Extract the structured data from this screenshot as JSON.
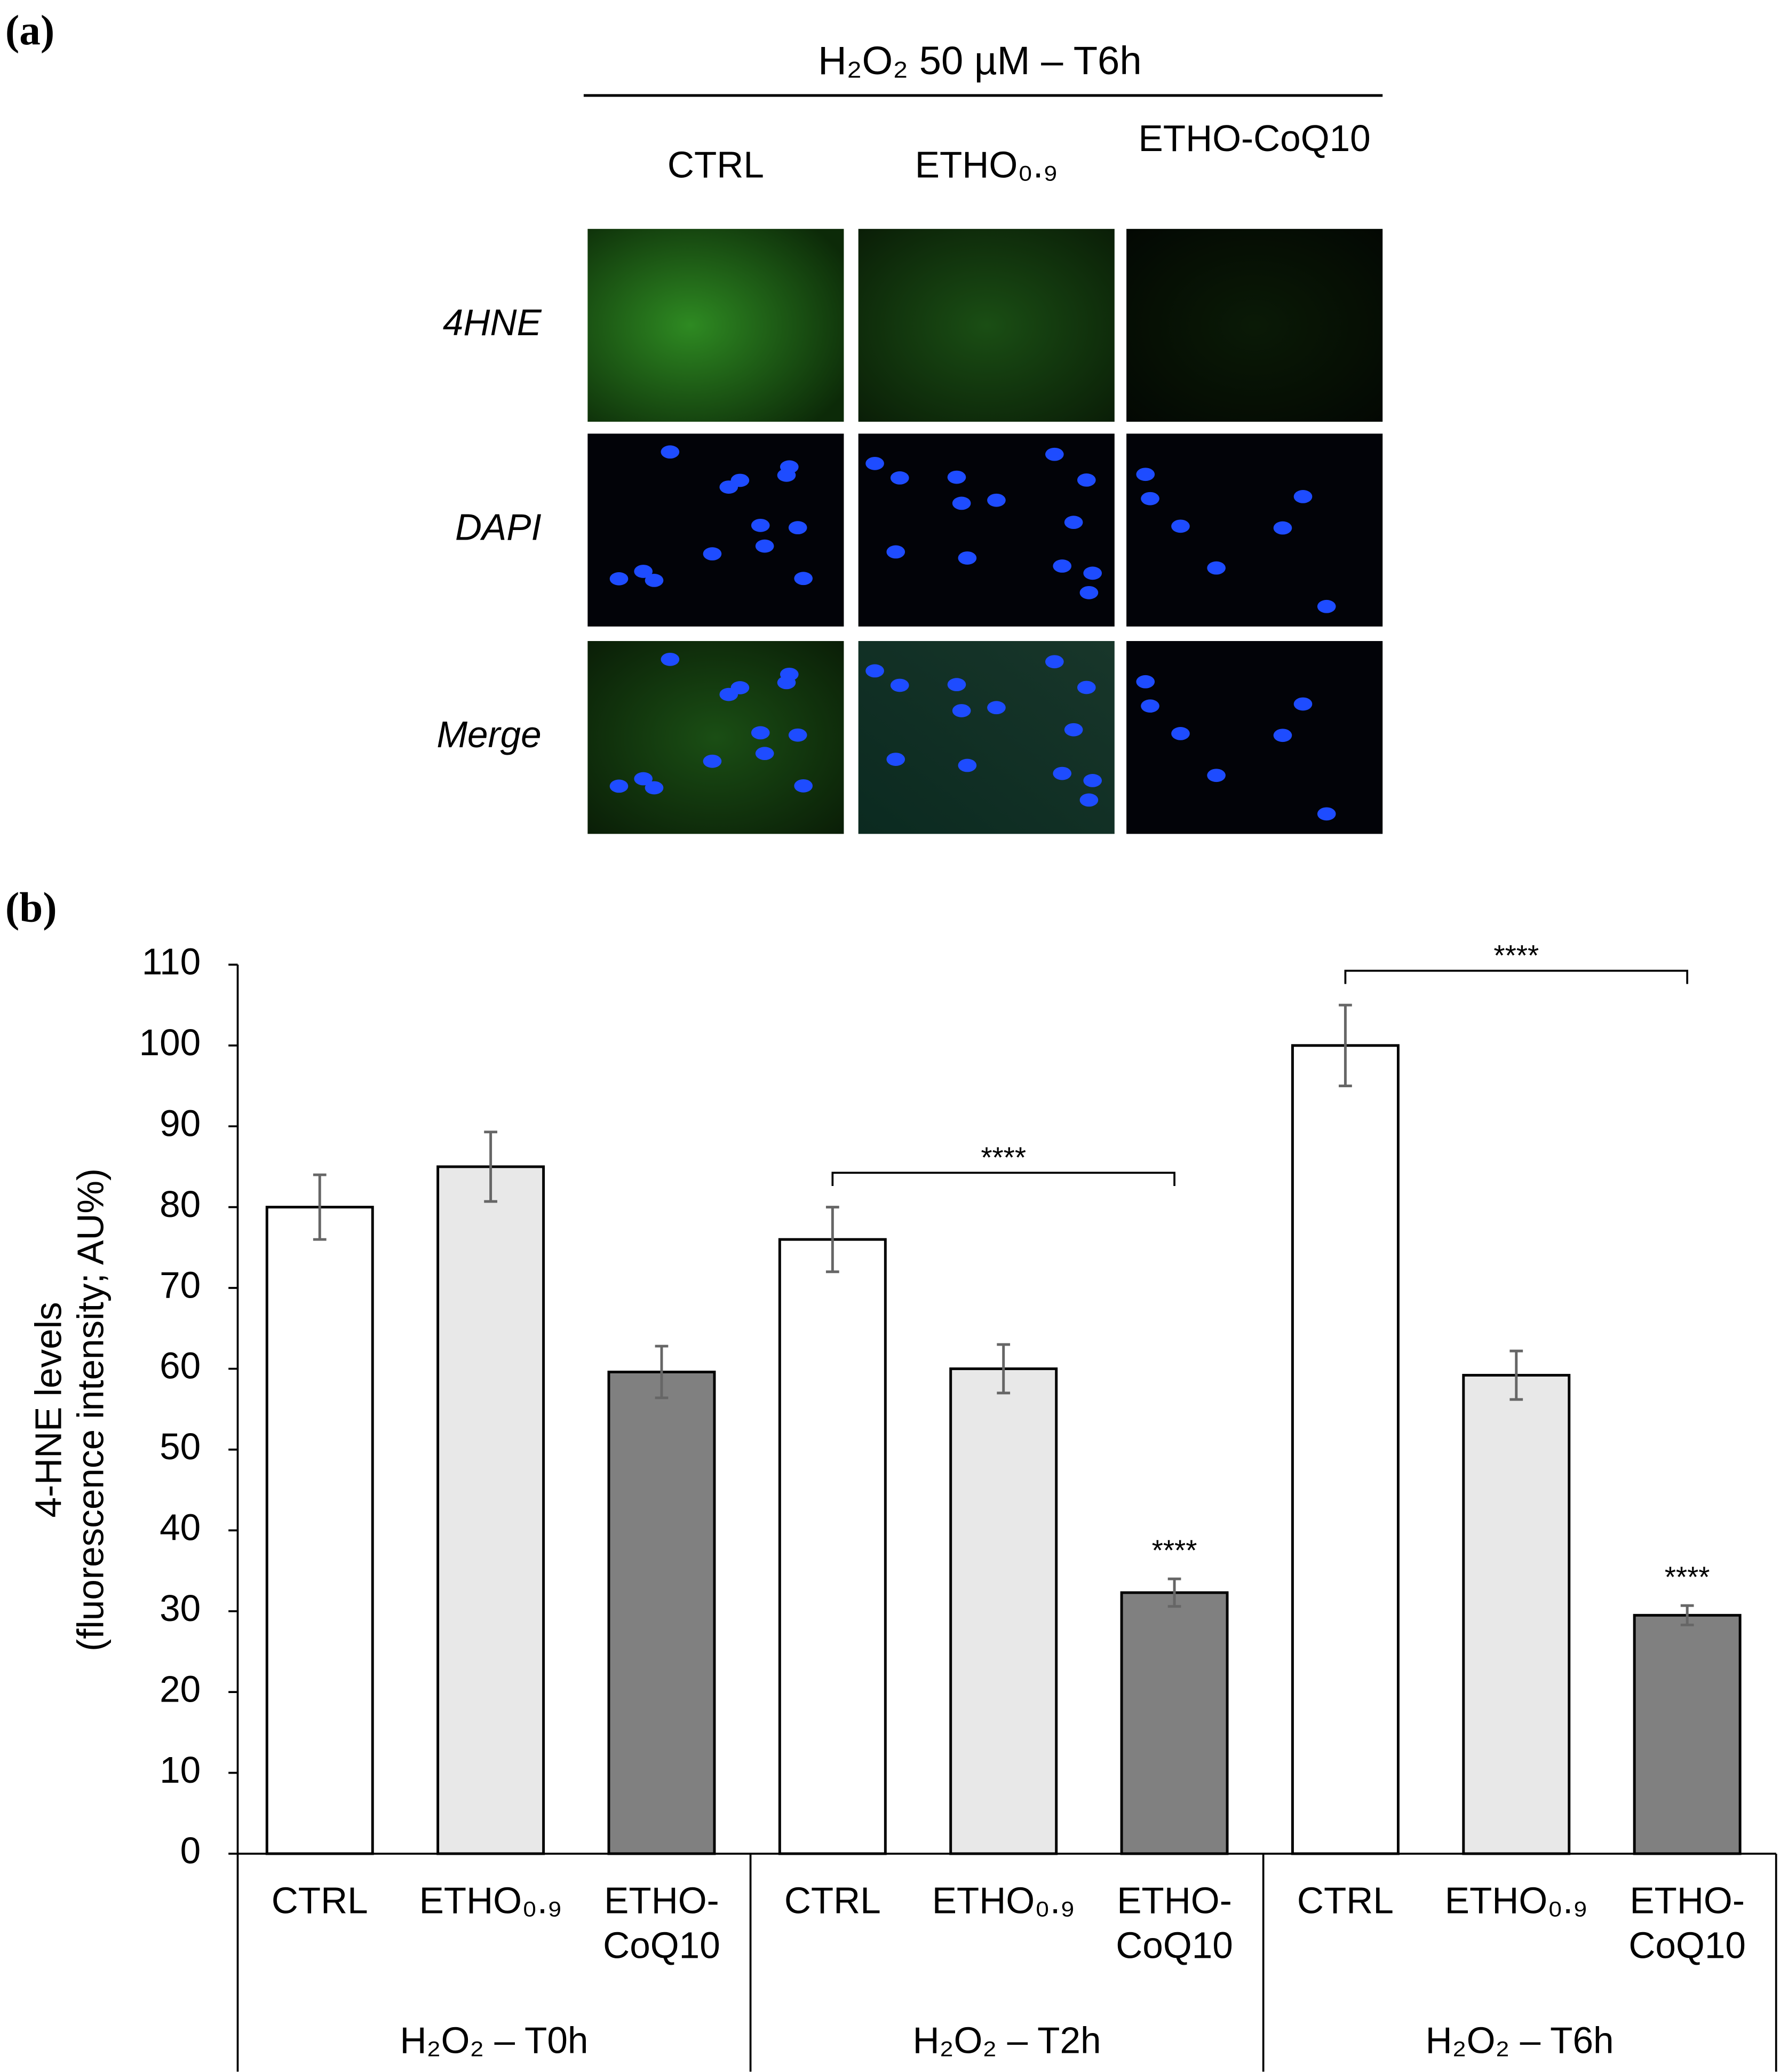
{
  "panel_a": {
    "label": "(a)",
    "treatment": "H₂O₂ 50 µM – T6h",
    "columns": [
      "CTRL",
      "ETHO₀.₉",
      "ETHO-CoQ10"
    ],
    "rows": [
      "4HNE",
      "DAPI",
      "Merge"
    ]
  },
  "chart_data": {
    "type": "bar",
    "panel_label": "(b)",
    "ylabel": [
      "4-HNE levels",
      "(fluorescence intensity; AU%)"
    ],
    "groups": [
      "H₂O₂ – T0h",
      "H₂O₂ – T2h",
      "H₂O₂ – T6h"
    ],
    "series": [
      {
        "name": "CTRL",
        "color": "#ffffff",
        "values": [
          80,
          76,
          100
        ],
        "errors": [
          4,
          4,
          5
        ]
      },
      {
        "name": "ETHO₀.₉",
        "color": "#e8e8e8",
        "values": [
          85,
          60,
          59.2
        ],
        "errors": [
          4.3,
          3,
          3
        ]
      },
      {
        "name": "ETHO-CoQ10",
        "color": "#808080",
        "values": [
          59.6,
          32.3,
          29.5
        ],
        "errors": [
          3.2,
          1.7,
          1.2
        ]
      }
    ],
    "ylim": [
      0,
      110
    ],
    "yticks": [
      0,
      10,
      20,
      30,
      40,
      50,
      60,
      70,
      80,
      90,
      100,
      110
    ],
    "brackets": [
      {
        "text": "****",
        "group": "H₂O₂ – T2h",
        "from": "CTRL",
        "to": "ETHO-CoQ10"
      },
      {
        "text": "****",
        "group": "H₂O₂ – T6h",
        "from": "CTRL",
        "to": "ETHO-CoQ10"
      }
    ],
    "stars": [
      {
        "text": "****",
        "group": "H₂O₂ – T2h",
        "series": "ETHO-CoQ10"
      },
      {
        "text": "****",
        "group": "H₂O₂ – T6h",
        "series": "ETHO-CoQ10"
      }
    ]
  }
}
